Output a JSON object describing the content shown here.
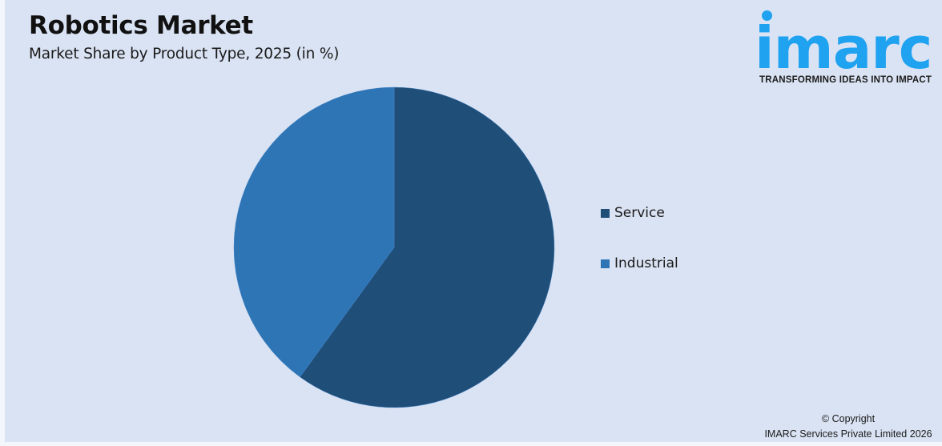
{
  "header": {
    "title": "Robotics Market",
    "subtitle": "Market Share by Product Type, 2025 (in %)"
  },
  "logo": {
    "word": "imarc",
    "tagline": "TRANSFORMING IDEAS INTO IMPACT",
    "color": "#1fa2f0"
  },
  "legend": {
    "items": [
      {
        "label": "Service",
        "color": "#1f4e79"
      },
      {
        "label": "Industrial",
        "color": "#2e75b6"
      }
    ]
  },
  "footer": {
    "copyright_line1": "© Copyright",
    "copyright_line2": "IMARC Services Private Limited 2026"
  },
  "chart_data": {
    "type": "pie",
    "title": "Robotics Market",
    "subtitle": "Market Share by Product Type, 2025 (in %)",
    "categories": [
      "Service",
      "Industrial"
    ],
    "values": [
      60,
      40
    ],
    "colors": [
      "#1f4e79",
      "#2e75b6"
    ],
    "start_angle_deg": 0,
    "direction": "clockwise",
    "legend_position": "right",
    "data_labels": false
  }
}
